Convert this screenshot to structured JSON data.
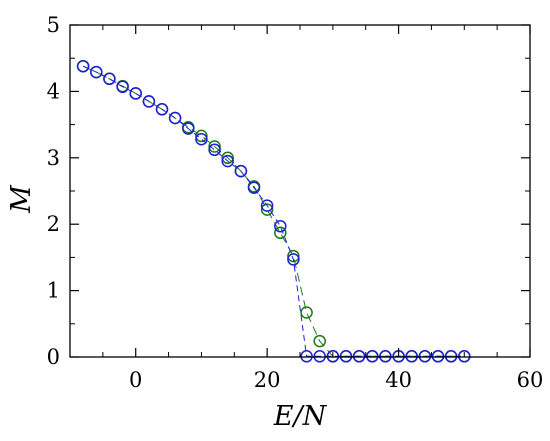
{
  "chart_data": {
    "type": "scatter",
    "xlabel": "E/N",
    "ylabel": "M",
    "xlim": [
      -10,
      60
    ],
    "ylim": [
      0,
      5
    ],
    "x_ticks": [
      0,
      20,
      40,
      60
    ],
    "y_ticks": [
      0,
      1,
      2,
      3,
      4,
      5
    ],
    "x_tick_labels": [
      "0",
      "20",
      "40",
      "60"
    ],
    "y_tick_labels": [
      "0",
      "1",
      "2",
      "3",
      "4",
      "5"
    ],
    "grid": false,
    "legend": "none",
    "series": [
      {
        "color": "#1a7a1a",
        "line_style": "long-dash",
        "marker": "open-circle",
        "x": [
          -8,
          -6,
          -4,
          -2,
          0,
          2,
          4,
          6,
          8,
          10,
          12,
          14,
          16,
          18,
          20,
          22,
          24,
          26,
          28,
          30,
          32,
          34,
          36,
          38,
          40,
          42,
          44,
          46,
          48,
          50
        ],
        "y": [
          4.38,
          4.29,
          4.19,
          4.08,
          3.97,
          3.85,
          3.73,
          3.6,
          3.46,
          3.33,
          3.17,
          3.0,
          2.8,
          2.57,
          2.22,
          1.87,
          1.52,
          0.67,
          0.24,
          0.01,
          0.01,
          0.01,
          0.01,
          0.01,
          0.01,
          0.01,
          0.01,
          0.01,
          0.01,
          0.01
        ]
      },
      {
        "color": "#1f1fd6",
        "line_style": "dash",
        "marker": "open-circle",
        "x": [
          -8,
          -6,
          -4,
          -2,
          0,
          2,
          4,
          6,
          8,
          10,
          12,
          14,
          16,
          18,
          20,
          22,
          24,
          26,
          28,
          30,
          32,
          34,
          36,
          38,
          40,
          42,
          44,
          46,
          48,
          50
        ],
        "y": [
          4.38,
          4.29,
          4.19,
          4.07,
          3.97,
          3.85,
          3.73,
          3.6,
          3.44,
          3.28,
          3.12,
          2.95,
          2.8,
          2.55,
          2.28,
          1.97,
          1.47,
          0.01,
          0.01,
          0.01,
          0.01,
          0.01,
          0.01,
          0.01,
          0.01,
          0.01,
          0.01,
          0.01,
          0.01,
          0.01
        ]
      }
    ]
  }
}
